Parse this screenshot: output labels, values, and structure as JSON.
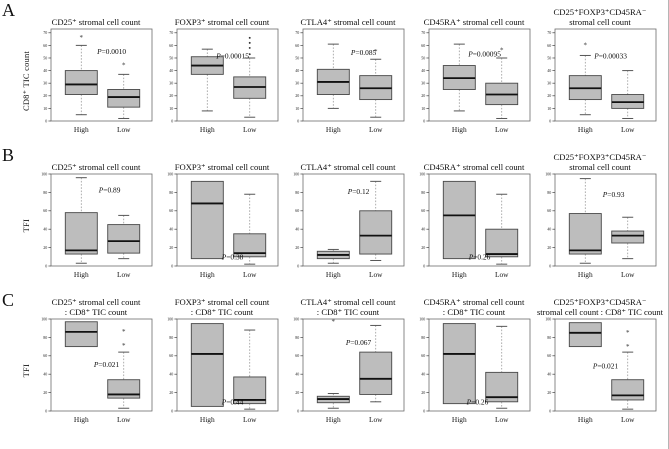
{
  "figure": {
    "background": "#ffffff",
    "box_fill": "#bdbdbd",
    "box_stroke": "#474747",
    "median_color": "#111111",
    "whisker_color": "#9a9a9a",
    "cap_color": "#555555",
    "plot_border": "#6b6b6b",
    "tick_text_color": "#222222"
  },
  "chart_data": {
    "type": "box",
    "rows": [
      {
        "letter": "A",
        "ylabel": "CD8⁺ TIC count",
        "yticks": [
          0,
          10,
          20,
          30,
          40,
          50,
          60,
          70
        ],
        "ydomain_max": 73,
        "x_categories": [
          "High",
          "Low"
        ],
        "panels": [
          {
            "title_lines": [
              "CD25⁺ stromal cell count"
            ],
            "p_label": "P=0.0010",
            "p_pos": {
              "x": 0.6,
              "y": 0.27
            },
            "boxes": [
              {
                "cat": "High",
                "min": 5,
                "q1": 21,
                "med": 29,
                "q3": 40,
                "max": 60
              },
              {
                "cat": "Low",
                "min": 2,
                "q1": 11,
                "med": 19,
                "q3": 25,
                "max": 37
              }
            ],
            "outliers": [
              {
                "group": "High",
                "value": 66,
                "symbol": "star"
              },
              {
                "group": "Low",
                "value": 44,
                "symbol": "star"
              }
            ]
          },
          {
            "title_lines": [
              "FOXP3⁺ stromal cell count"
            ],
            "p_label": "P=0.00015",
            "p_pos": {
              "x": 0.55,
              "y": 0.32
            },
            "boxes": [
              {
                "cat": "High",
                "min": 8,
                "q1": 37,
                "med": 44,
                "q3": 51,
                "max": 57
              },
              {
                "cat": "Low",
                "min": 3,
                "q1": 18,
                "med": 27,
                "q3": 35,
                "max": 50
              }
            ],
            "outliers": [
              {
                "group": "Low",
                "value": 53,
                "symbol": "dot"
              },
              {
                "group": "Low",
                "value": 58,
                "symbol": "dot"
              },
              {
                "group": "Low",
                "value": 62,
                "symbol": "dot"
              },
              {
                "group": "Low",
                "value": 66,
                "symbol": "dot"
              }
            ]
          },
          {
            "title_lines": [
              "CTLA4⁺ stromal cell count"
            ],
            "p_label": "P=0.085",
            "p_pos": {
              "x": 0.6,
              "y": 0.28
            },
            "boxes": [
              {
                "cat": "High",
                "min": 10,
                "q1": 21,
                "med": 31,
                "q3": 41,
                "max": 61
              },
              {
                "cat": "Low",
                "min": 3,
                "q1": 17,
                "med": 26,
                "q3": 36,
                "max": 49
              }
            ],
            "outliers": [
              {
                "group": "Low",
                "value": 55,
                "symbol": "star"
              }
            ]
          },
          {
            "title_lines": [
              "CD45RA⁺ stromal cell count"
            ],
            "p_label": "P=0.00095",
            "p_pos": {
              "x": 0.55,
              "y": 0.3
            },
            "boxes": [
              {
                "cat": "High",
                "min": 8,
                "q1": 25,
                "med": 34,
                "q3": 44,
                "max": 61
              },
              {
                "cat": "Low",
                "min": 2,
                "q1": 13,
                "med": 21,
                "q3": 30,
                "max": 50
              }
            ],
            "outliers": [
              {
                "group": "Low",
                "value": 56,
                "symbol": "star"
              }
            ]
          },
          {
            "title_lines": [
              "CD25⁺FOXP3⁺CD45RA⁻",
              "stromal cell count"
            ],
            "p_label": "P=0.00033",
            "p_pos": {
              "x": 0.55,
              "y": 0.32
            },
            "boxes": [
              {
                "cat": "High",
                "min": 5,
                "q1": 17,
                "med": 26,
                "q3": 36,
                "max": 52
              },
              {
                "cat": "Low",
                "min": 2,
                "q1": 10,
                "med": 15,
                "q3": 21,
                "max": 40
              }
            ],
            "outliers": [
              {
                "group": "High",
                "value": 60,
                "symbol": "star"
              }
            ]
          }
        ]
      },
      {
        "letter": "B",
        "ylabel": "TFI",
        "yticks": [
          0,
          20,
          40,
          60,
          80,
          100
        ],
        "ydomain_max": 100,
        "x_categories": [
          "High",
          "Low"
        ],
        "panels": [
          {
            "title_lines": [
              "CD25⁺ stromal cell count"
            ],
            "p_label": "P=0.89",
            "p_pos": {
              "x": 0.58,
              "y": 0.2
            },
            "boxes": [
              {
                "cat": "High",
                "min": 3,
                "q1": 13,
                "med": 17,
                "q3": 58,
                "max": 96
              },
              {
                "cat": "Low",
                "min": 8,
                "q1": 14,
                "med": 27,
                "q3": 45,
                "max": 55
              }
            ],
            "outliers": []
          },
          {
            "title_lines": [
              "FOXP3⁺ stromal cell count"
            ],
            "p_label": "P=0.38",
            "p_pos": {
              "x": 0.55,
              "y": 0.93
            },
            "boxes": [
              {
                "cat": "High",
                "min": 8,
                "q1": 8,
                "med": 68,
                "q3": 92,
                "max": 92
              },
              {
                "cat": "Low",
                "min": 2,
                "q1": 10,
                "med": 14,
                "q3": 35,
                "max": 78
              }
            ],
            "outliers": []
          },
          {
            "title_lines": [
              "CTLA4⁺ stromal cell count"
            ],
            "p_label": "P=0.12",
            "p_pos": {
              "x": 0.55,
              "y": 0.22
            },
            "boxes": [
              {
                "cat": "High",
                "min": 3,
                "q1": 8,
                "med": 12,
                "q3": 16,
                "max": 18
              },
              {
                "cat": "Low",
                "min": 6,
                "q1": 13,
                "med": 33,
                "q3": 60,
                "max": 92
              }
            ],
            "outliers": []
          },
          {
            "title_lines": [
              "CD45RA⁺ stromal cell count"
            ],
            "p_label": "P=0.26",
            "p_pos": {
              "x": 0.5,
              "y": 0.93
            },
            "boxes": [
              {
                "cat": "High",
                "min": 8,
                "q1": 8,
                "med": 55,
                "q3": 92,
                "max": 92
              },
              {
                "cat": "Low",
                "min": 2,
                "q1": 10,
                "med": 13,
                "q3": 40,
                "max": 78
              }
            ],
            "outliers": []
          },
          {
            "title_lines": [
              "CD25⁺FOXP3⁺CD45RA⁻",
              "stromal cell count"
            ],
            "p_label": "P=0.93",
            "p_pos": {
              "x": 0.58,
              "y": 0.25
            },
            "boxes": [
              {
                "cat": "High",
                "min": 3,
                "q1": 13,
                "med": 17,
                "q3": 57,
                "max": 95
              },
              {
                "cat": "Low",
                "min": 8,
                "q1": 25,
                "med": 33,
                "q3": 38,
                "max": 53
              }
            ],
            "outliers": []
          }
        ]
      },
      {
        "letter": "C",
        "ylabel": "TFI",
        "yticks": [
          0,
          20,
          40,
          60,
          80,
          100
        ],
        "ydomain_max": 100,
        "x_categories": [
          "High",
          "Low"
        ],
        "panels": [
          {
            "title_lines": [
              "CD25⁺ stromal cell count",
              ": CD8⁺ TIC count"
            ],
            "p_label": "P=0.021",
            "p_pos": {
              "x": 0.55,
              "y": 0.52
            },
            "boxes": [
              {
                "cat": "High",
                "min": 70,
                "q1": 70,
                "med": 86,
                "q3": 97,
                "max": 97
              },
              {
                "cat": "Low",
                "min": 3,
                "q1": 14,
                "med": 18,
                "q3": 34,
                "max": 64
              }
            ],
            "outliers": [
              {
                "group": "Low",
                "value": 86,
                "symbol": "star"
              },
              {
                "group": "Low",
                "value": 71,
                "symbol": "star"
              }
            ]
          },
          {
            "title_lines": [
              "FOXP3⁺ stromal cell count",
              ": CD8⁺ TIC count"
            ],
            "p_label": "P=0.44",
            "p_pos": {
              "x": 0.55,
              "y": 0.93
            },
            "boxes": [
              {
                "cat": "High",
                "min": 5,
                "q1": 5,
                "med": 62,
                "q3": 95,
                "max": 95
              },
              {
                "cat": "Low",
                "min": 2,
                "q1": 8,
                "med": 12,
                "q3": 37,
                "max": 88
              }
            ],
            "outliers": []
          },
          {
            "title_lines": [
              "CTLA4⁺ stromal cell count",
              ": CD8⁺ TIC count"
            ],
            "p_label": "P=0.067",
            "p_pos": {
              "x": 0.55,
              "y": 0.28
            },
            "boxes": [
              {
                "cat": "High",
                "min": 3,
                "q1": 9,
                "med": 13,
                "q3": 16,
                "max": 19
              },
              {
                "cat": "Low",
                "min": 10,
                "q1": 18,
                "med": 35,
                "q3": 64,
                "max": 93
              }
            ],
            "outliers": [
              {
                "group": "High",
                "value": 97,
                "symbol": "star"
              }
            ]
          },
          {
            "title_lines": [
              "CD45RA⁺ stromal cell count",
              ": CD8⁺ TIC count"
            ],
            "p_label": "P=0.26",
            "p_pos": {
              "x": 0.48,
              "y": 0.93
            },
            "boxes": [
              {
                "cat": "High",
                "min": 8,
                "q1": 8,
                "med": 62,
                "q3": 95,
                "max": 95
              },
              {
                "cat": "Low",
                "min": 3,
                "q1": 10,
                "med": 15,
                "q3": 42,
                "max": 92
              }
            ],
            "outliers": []
          },
          {
            "title_lines": [
              "CD25⁺FOXP3⁺CD45RA⁻",
              "stromal cell count : CD8⁺ TIC count"
            ],
            "p_label": "P=0.021",
            "p_pos": {
              "x": 0.5,
              "y": 0.54
            },
            "boxes": [
              {
                "cat": "High",
                "min": 70,
                "q1": 70,
                "med": 85,
                "q3": 96,
                "max": 96
              },
              {
                "cat": "Low",
                "min": 2,
                "q1": 12,
                "med": 17,
                "q3": 34,
                "max": 64
              }
            ],
            "outliers": [
              {
                "group": "Low",
                "value": 85,
                "symbol": "star"
              },
              {
                "group": "Low",
                "value": 70,
                "symbol": "star"
              }
            ]
          }
        ]
      }
    ]
  }
}
